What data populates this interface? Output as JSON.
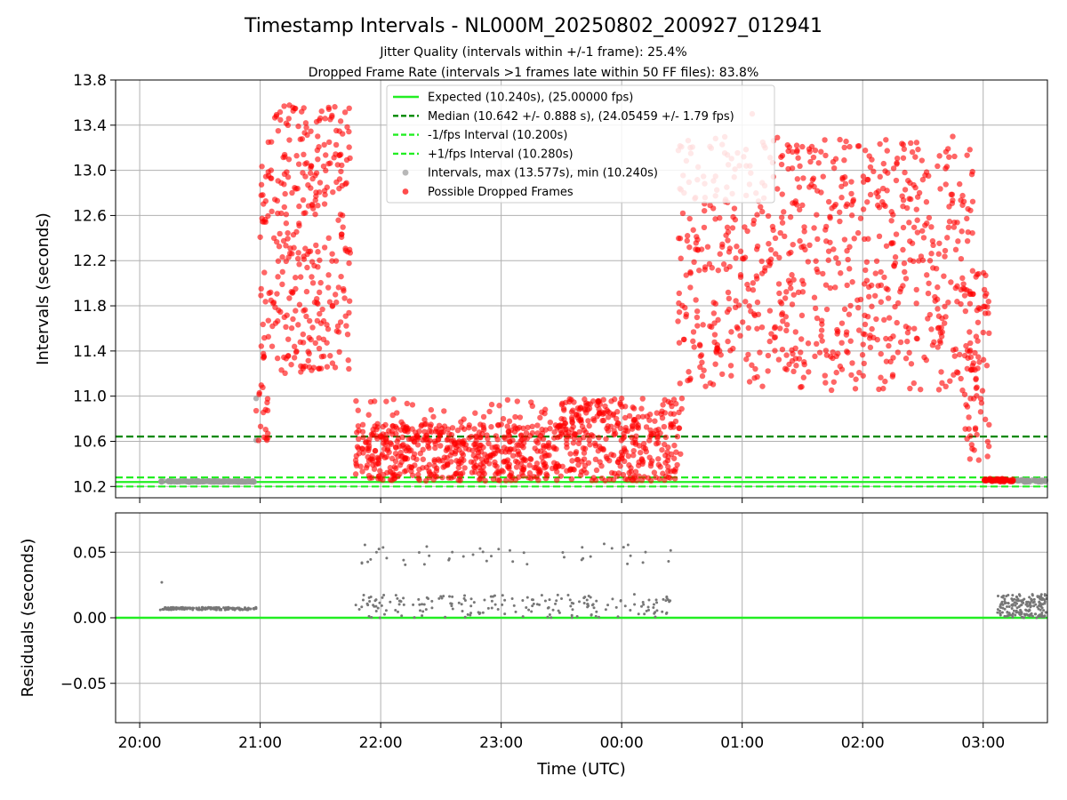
{
  "figure": {
    "title": "Timestamp Intervals - NL000M_20250802_200927_012941",
    "subtitle_1": "Jitter Quality (intervals within +/-1 frame): 25.4%",
    "subtitle_2": "Dropped Frame Rate (intervals >1 frames late within 50 FF files): 83.8%"
  },
  "colors": {
    "expected": "#22ee22",
    "median": "#008800",
    "interval": "#22ee22",
    "normal_points": "#9a9a9a",
    "dropped_points": "#ff0000",
    "residual_points": "#777777",
    "grid": "#b0b0b0"
  },
  "chart_data": [
    {
      "type": "scatter",
      "ylabel": "Intervals (seconds)",
      "ylim": [
        10.1,
        13.8
      ],
      "y_ticks": [
        "10.2",
        "10.6",
        "11.0",
        "11.4",
        "11.8",
        "12.2",
        "12.6",
        "13.0",
        "13.4",
        "13.8"
      ],
      "x_range": [
        "19:48",
        "03:32"
      ],
      "grid": true,
      "legend_position": "top-center",
      "legend": [
        "Expected (10.240s), (25.00000 fps)",
        "Median (10.642 +/- 0.888 s), (24.05459 +/- 1.79 fps)",
        "-1/fps Interval (10.200s)",
        "+1/fps Interval (10.280s)",
        "Intervals, max (13.577s), min (10.240s)",
        "Possible Dropped Frames"
      ],
      "reference_lines": [
        {
          "name": "Expected",
          "y": 10.24,
          "style": "solid"
        },
        {
          "name": "Median",
          "y": 10.642,
          "style": "dashed"
        },
        {
          "name": "-1/fps Interval",
          "y": 10.2,
          "style": "dashed"
        },
        {
          "name": "+1/fps Interval",
          "y": 10.28,
          "style": "dashed"
        }
      ],
      "series": [
        {
          "name": "Intervals, max (13.577s), min (10.240s)",
          "clusters": [
            {
              "from": "20:10",
              "to": "20:57",
              "y_min": 10.24,
              "y_max": 10.25,
              "count": 140
            },
            {
              "from": "03:14",
              "to": "03:32",
              "y_min": 10.24,
              "y_max": 10.26,
              "count": 40
            }
          ],
          "points": [
            [
              "20:58",
              10.98
            ],
            [
              "20:58",
              10.61
            ]
          ]
        },
        {
          "name": "Possible Dropped Frames",
          "segments": [
            {
              "from": "20:58",
              "to": "21:04",
              "y_min": 10.6,
              "y_max": 11.2,
              "count": 18
            },
            {
              "from": "21:00",
              "to": "21:45",
              "y_min": 11.2,
              "y_max": 13.58,
              "count": 340
            },
            {
              "from": "21:47",
              "to": "23:30",
              "y_min": 10.25,
              "y_max": 10.75,
              "count": 520
            },
            {
              "from": "21:47",
              "to": "00:05",
              "y_min": 10.6,
              "y_max": 10.98,
              "count": 70
            },
            {
              "from": "23:30",
              "to": "00:30",
              "y_min": 10.25,
              "y_max": 10.98,
              "count": 320
            },
            {
              "from": "00:28",
              "to": "00:35",
              "y_min": 11.0,
              "y_max": 13.4,
              "count": 40
            },
            {
              "from": "00:35",
              "to": "02:55",
              "y_min": 11.05,
              "y_max": 13.3,
              "count": 720
            },
            {
              "from": "02:50",
              "to": "03:03",
              "y_min": 10.4,
              "y_max": 12.1,
              "count": 80
            },
            {
              "from": "03:00",
              "to": "03:15",
              "y_min": 10.24,
              "y_max": 10.27,
              "count": 60
            }
          ],
          "points": [
            [
              "23:34",
              10.95
            ],
            [
              "00:00",
              10.98
            ],
            [
              "00:30",
              10.98
            ],
            [
              "01:05",
              13.5
            ],
            [
              "22:47",
              10.85
            ]
          ]
        }
      ]
    },
    {
      "type": "scatter",
      "ylabel": "Residuals (seconds)",
      "ylim": [
        -0.08,
        0.08
      ],
      "y_ticks": [
        "0.05",
        "0.00",
        "−0.05"
      ],
      "x_ticks": [
        "20:00",
        "21:00",
        "22:00",
        "23:00",
        "00:00",
        "01:00",
        "02:00",
        "03:00"
      ],
      "xlabel": "Time (UTC)",
      "x_range": [
        "19:48",
        "03:32"
      ],
      "grid": true,
      "reference_lines": [
        {
          "y": 0.0,
          "style": "solid"
        }
      ],
      "series": [
        {
          "name": "Residuals",
          "segments": [
            {
              "from": "20:10",
              "to": "20:58",
              "y_min": 0.006,
              "y_max": 0.008,
              "count": 160
            },
            {
              "from": "21:47",
              "to": "00:25",
              "y_min": 0.0,
              "y_max": 0.018,
              "count": 190
            },
            {
              "from": "21:47",
              "to": "00:25",
              "y_min": 0.04,
              "y_max": 0.057,
              "count": 45
            },
            {
              "from": "03:07",
              "to": "03:32",
              "y_min": 0.0,
              "y_max": 0.018,
              "count": 180
            }
          ],
          "points": [
            [
              "20:11",
              0.027
            ]
          ]
        }
      ]
    }
  ]
}
